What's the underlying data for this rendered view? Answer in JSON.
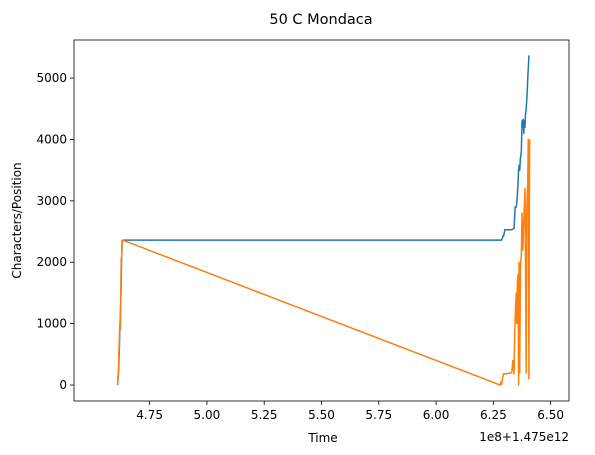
{
  "chart_data": {
    "type": "line",
    "title": "50 C Mondaca",
    "xlabel": "Time",
    "ylabel": "Characters/Position",
    "x_offset_text": "1e8+1.475e12",
    "xlim": [
      4.42,
      6.58
    ],
    "ylim": [
      -260,
      5620
    ],
    "x_ticks": [
      4.75,
      5.0,
      5.25,
      5.5,
      5.75,
      6.0,
      6.25,
      6.5
    ],
    "x_tick_labels": [
      "4.75",
      "5.00",
      "5.25",
      "5.50",
      "5.75",
      "6.00",
      "6.25",
      "6.50"
    ],
    "y_ticks": [
      0,
      1000,
      2000,
      3000,
      4000,
      5000
    ],
    "y_tick_labels": [
      "0",
      "1000",
      "2000",
      "3000",
      "4000",
      "5000"
    ],
    "grid": false,
    "legend": "none",
    "series": [
      {
        "color": "#1f77b4",
        "x": [
          4.61,
          4.615,
          4.618,
          4.62,
          4.622,
          4.625,
          4.628,
          4.63,
          4.633,
          4.636,
          4.64,
          6.28,
          6.285,
          6.29,
          6.292,
          6.295,
          6.3,
          6.33,
          6.34,
          6.345,
          6.35,
          6.355,
          6.36,
          6.362,
          6.365,
          6.368,
          6.37,
          6.372,
          6.375,
          6.378,
          6.38,
          6.383,
          6.385,
          6.388,
          6.39,
          6.393,
          6.395,
          6.398,
          6.4,
          6.403,
          6.405,
          6.408
        ],
        "y": [
          0,
          250,
          600,
          900,
          1100,
          1500,
          2100,
          2350,
          2360,
          2360,
          2360,
          2360,
          2360,
          2400,
          2430,
          2430,
          2530,
          2530,
          2550,
          2900,
          2900,
          3100,
          3500,
          3580,
          3500,
          3700,
          3750,
          3800,
          4300,
          4200,
          4330,
          4100,
          4300,
          4200,
          4400,
          4500,
          4600,
          4800,
          5000,
          5200,
          5360,
          5360
        ]
      },
      {
        "color": "#ff7f0e",
        "x": [
          4.61,
          4.614,
          4.617,
          4.62,
          4.622,
          4.624,
          4.626,
          4.628,
          4.63,
          4.633,
          6.28,
          6.282,
          6.285,
          6.29,
          6.293,
          6.296,
          6.3,
          6.33,
          6.335,
          6.34,
          6.343,
          6.346,
          6.35,
          6.352,
          6.355,
          6.358,
          6.36,
          6.362,
          6.365,
          6.368,
          6.37,
          6.372,
          6.375,
          6.378,
          6.38,
          6.382,
          6.385,
          6.388,
          6.39,
          6.393,
          6.396,
          6.4,
          6.402,
          6.405,
          6.408
        ],
        "y": [
          0,
          250,
          650,
          1000,
          900,
          1400,
          2050,
          2100,
          2300,
          2360,
          0,
          50,
          10,
          100,
          180,
          180,
          180,
          200,
          400,
          180,
          800,
          1200,
          1500,
          1000,
          1700,
          1800,
          0,
          2000,
          200,
          1900,
          2050,
          2100,
          2800,
          2200,
          2300,
          2600,
          2900,
          3200,
          2200,
          200,
          2900,
          3300,
          4000,
          100,
          4000
        ]
      }
    ]
  }
}
